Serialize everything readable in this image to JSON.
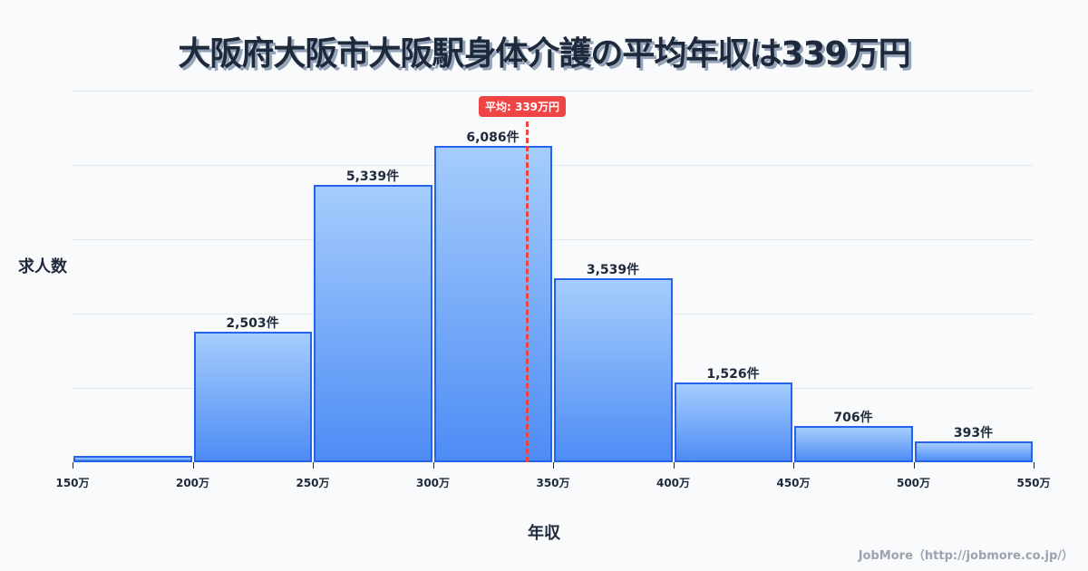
{
  "title": "大阪府大阪市大阪駅身体介護の平均年収は339万円",
  "axis": {
    "ylabel": "求人数",
    "xlabel": "年収"
  },
  "mean_badge": "平均: 339万円",
  "footer": "JobMore（http://jobmore.co.jp/）",
  "colors": {
    "bar_top": "#a5cdfc",
    "bar_bottom": "#4e8cf5",
    "bar_border": "#2563eb",
    "mean_line": "#ef4444",
    "text": "#1e293b"
  },
  "bars": [
    {
      "range": "150-200万",
      "value": 130,
      "label": ""
    },
    {
      "range": "200-250万",
      "value": 2503,
      "label": "2,503件"
    },
    {
      "range": "250-300万",
      "value": 5339,
      "label": "5,339件"
    },
    {
      "range": "300-350万",
      "value": 6086,
      "label": "6,086件"
    },
    {
      "range": "350-400万",
      "value": 3539,
      "label": "3,539件"
    },
    {
      "range": "400-450万",
      "value": 1526,
      "label": "1,526件"
    },
    {
      "range": "450-500万",
      "value": 706,
      "label": "706件"
    },
    {
      "range": "500-550万",
      "value": 393,
      "label": "393件"
    }
  ],
  "ticks": [
    "150万",
    "200万",
    "250万",
    "300万",
    "350万",
    "400万",
    "450万",
    "500万",
    "550万"
  ],
  "chart_data": {
    "type": "bar",
    "title": "大阪府大阪市大阪駅身体介護の平均年収は339万円",
    "xlabel": "年収",
    "ylabel": "求人数",
    "categories": [
      "150-200万",
      "200-250万",
      "250-300万",
      "300-350万",
      "350-400万",
      "400-450万",
      "450-500万",
      "500-550万"
    ],
    "values": [
      130,
      2503,
      5339,
      6086,
      3539,
      1526,
      706,
      393
    ],
    "x_ticks": [
      "150万",
      "200万",
      "250万",
      "300万",
      "350万",
      "400万",
      "450万",
      "500万",
      "550万"
    ],
    "annotations": [
      {
        "type": "vline",
        "x": 339,
        "label": "平均: 339万円"
      }
    ],
    "grid": true,
    "legend": "none"
  }
}
